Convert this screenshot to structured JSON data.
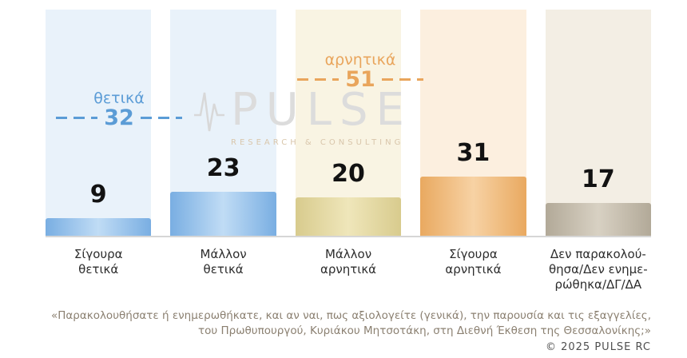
{
  "chart_data": {
    "type": "bar",
    "categories": [
      "Σίγουρα θετικά",
      "Μάλλον θετικά",
      "Μάλλον αρνητικά",
      "Σίγουρα αρνητικά",
      "Δεν παρακολούθησα/Δεν ενημερώθηκα/ΔΓ/ΔΑ"
    ],
    "category_lines": [
      [
        "Σίγουρα",
        "θετικά"
      ],
      [
        "Μάλλον",
        "θετικά"
      ],
      [
        "Μάλλον",
        "αρνητικά"
      ],
      [
        "Σίγουρα",
        "αρνητικά"
      ],
      [
        "Δεν παρακολού-",
        "θησα/Δεν ενημε-",
        "ρώθηκα/ΔΓ/ΔΑ"
      ]
    ],
    "values": [
      9,
      23,
      20,
      31,
      17
    ],
    "ylim": [
      0,
      100
    ],
    "bar_colors": [
      {
        "edge": "#79aee2",
        "mid": "#c0dcf5"
      },
      {
        "edge": "#79aee2",
        "mid": "#c0dcf5"
      },
      {
        "edge": "#d8cb8d",
        "mid": "#efe6ba"
      },
      {
        "edge": "#e9a960",
        "mid": "#f7d2a4"
      },
      {
        "edge": "#b2a998",
        "mid": "#d8d1c3"
      }
    ],
    "band_colors": [
      "#e9f2fa",
      "#e9f2fa",
      "#f9f4e3",
      "#fcefdf",
      "#f3eee4"
    ],
    "aggregates": [
      {
        "label": "θετικά",
        "value": 32,
        "color": "#5b9cd6"
      },
      {
        "label": "αρνητικά",
        "value": 51,
        "color": "#e9a55c"
      }
    ],
    "value_label_color": "#121212"
  },
  "watermark": {
    "brand": "PULSE",
    "subtitle": "RESEARCH & CONSULTING"
  },
  "footer": {
    "caption_line1": "«Παρακολουθήσατε ή ενημερωθήκατε, και αν ναι, πως αξιολογείτε (γενικά), την παρουσία και τις εξαγγελίες,",
    "caption_line2": "του Πρωθυπουργού, Κυριάκου Μητσοτάκη, στη Διεθνή Έκθεση της Θεσσαλονίκης;»",
    "copyright": "© 2025 PULSE RC"
  }
}
